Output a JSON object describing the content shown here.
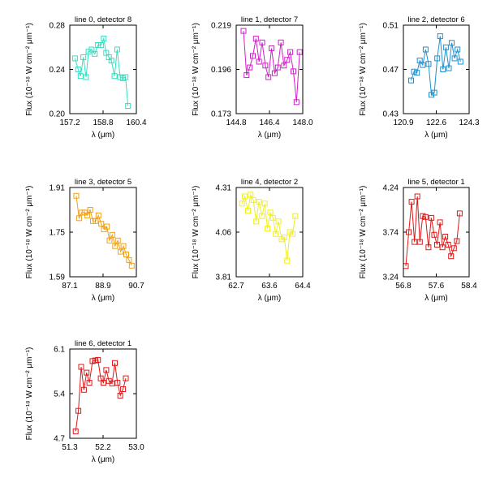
{
  "figure": {
    "background": "#ffffff",
    "marker": "open-square",
    "line_width": 1
  },
  "chart_data": [
    {
      "type": "line",
      "title": "line 0, detector 8",
      "xlabel": "λ (μm)",
      "ylabel": "Flux (10⁻¹⁸ W cm⁻² μm⁻¹)",
      "xlim": [
        157.2,
        160.4
      ],
      "ylim": [
        0.2,
        0.28
      ],
      "xticks": [
        "157.2",
        "158.8",
        "160.4"
      ],
      "yticks": [
        "0.20",
        "0.24",
        "0.28"
      ],
      "color": "#33e0c0",
      "series": [
        {
          "x": [
            157.45,
            157.6,
            157.72,
            157.85,
            157.98,
            158.1,
            158.25,
            158.4,
            158.55,
            158.7,
            158.83,
            158.95,
            159.08,
            159.2,
            159.35,
            159.48,
            159.62,
            159.75,
            159.88,
            160.0
          ],
          "y": [
            0.25,
            0.24,
            0.234,
            0.251,
            0.233,
            0.256,
            0.258,
            0.254,
            0.262,
            0.262,
            0.268,
            0.255,
            0.251,
            0.248,
            0.234,
            0.258,
            0.233,
            0.232,
            0.233,
            0.207
          ]
        }
      ]
    },
    {
      "type": "line",
      "title": "line 1, detector 7",
      "xlabel": "λ (μm)",
      "ylabel": "Flux (10⁻¹⁸ W cm⁻² μm⁻¹)",
      "xlim": [
        144.8,
        148.0
      ],
      "ylim": [
        0.173,
        0.219
      ],
      "xticks": [
        "144.8",
        "146.4",
        "148.0"
      ],
      "yticks": [
        "0.173",
        "0.196",
        "0.219"
      ],
      "color": "#d01ec8",
      "series": [
        {
          "x": [
            145.15,
            145.3,
            145.45,
            145.6,
            145.75,
            145.9,
            146.05,
            146.2,
            146.35,
            146.5,
            146.65,
            146.8,
            146.95,
            147.1,
            147.25,
            147.4,
            147.55,
            147.7,
            147.85
          ],
          "y": [
            0.216,
            0.193,
            0.197,
            0.203,
            0.212,
            0.2,
            0.21,
            0.198,
            0.192,
            0.207,
            0.194,
            0.197,
            0.21,
            0.198,
            0.201,
            0.205,
            0.195,
            0.179,
            0.205
          ]
        }
      ]
    },
    {
      "type": "line",
      "title": "line 2, detector 6",
      "xlabel": "λ (μm)",
      "ylabel": "Flux (10⁻¹⁸ W cm⁻² μm⁻¹)",
      "xlim": [
        120.9,
        124.3
      ],
      "ylim": [
        0.43,
        0.51
      ],
      "xticks": [
        "120.9",
        "122.6",
        "124.3"
      ],
      "yticks": [
        "0.43",
        "0.47",
        "0.51"
      ],
      "color": "#1e90d0",
      "series": [
        {
          "x": [
            121.3,
            121.45,
            121.6,
            121.75,
            121.9,
            122.05,
            122.2,
            122.35,
            122.5,
            122.65,
            122.8,
            122.95,
            123.1,
            123.25,
            123.4,
            123.55,
            123.7,
            123.85
          ],
          "y": [
            0.46,
            0.468,
            0.467,
            0.478,
            0.474,
            0.488,
            0.475,
            0.447,
            0.449,
            0.48,
            0.5,
            0.47,
            0.49,
            0.471,
            0.494,
            0.48,
            0.488,
            0.477
          ]
        }
      ]
    },
    {
      "type": "line",
      "title": "line 3, detector 5",
      "xlabel": "λ (μm)",
      "ylabel": "Flux (10⁻¹⁸ W cm⁻² μm⁻¹)",
      "xlim": [
        87.1,
        90.7
      ],
      "ylim": [
        1.59,
        1.91
      ],
      "xticks": [
        "87.1",
        "88.9",
        "90.7"
      ],
      "yticks": [
        "1.59",
        "1.75",
        "1.91"
      ],
      "color": "#f0a018",
      "series": [
        {
          "x": [
            87.45,
            87.6,
            87.75,
            87.9,
            88.05,
            88.2,
            88.35,
            88.5,
            88.65,
            88.8,
            88.95,
            89.1,
            89.25,
            89.4,
            89.55,
            89.7,
            89.85,
            90.0,
            90.15,
            90.3,
            90.45
          ],
          "y": [
            1.88,
            1.8,
            1.82,
            1.82,
            1.81,
            1.83,
            1.79,
            1.79,
            1.81,
            1.78,
            1.76,
            1.77,
            1.72,
            1.74,
            1.7,
            1.72,
            1.68,
            1.7,
            1.67,
            1.65,
            1.63
          ]
        }
      ]
    },
    {
      "type": "line",
      "title": "line 4, detector 2",
      "xlabel": "λ (μm)",
      "ylabel": "Flux (10⁻¹⁸ W cm⁻² μm⁻¹)",
      "xlim": [
        62.7,
        64.4
      ],
      "ylim": [
        3.81,
        4.31
      ],
      "xticks": [
        "62.7",
        "63.6",
        "64.4"
      ],
      "yticks": [
        "3.81",
        "4.06",
        "4.31"
      ],
      "color": "#f0f020",
      "series": [
        {
          "x": [
            62.85,
            62.92,
            63.0,
            63.07,
            63.14,
            63.21,
            63.28,
            63.36,
            63.43,
            63.5,
            63.57,
            63.64,
            63.71,
            63.78,
            63.86,
            63.93,
            64.0,
            64.07,
            64.14,
            64.21
          ],
          "y": [
            4.22,
            4.26,
            4.18,
            4.27,
            4.24,
            4.12,
            4.23,
            4.15,
            4.22,
            4.08,
            4.17,
            4.14,
            4.05,
            4.12,
            4.02,
            4.03,
            3.9,
            4.06,
            4.05,
            4.15
          ]
        }
      ]
    },
    {
      "type": "line",
      "title": "line 5, detector 1",
      "xlabel": "λ (μm)",
      "ylabel": "Flux (10⁻¹⁸ W cm⁻² μm⁻¹)",
      "xlim": [
        56.8,
        58.4
      ],
      "ylim": [
        3.24,
        4.24
      ],
      "xticks": [
        "56.8",
        "57.6",
        "58.4"
      ],
      "yticks": [
        "3.24",
        "3.74",
        "4.24"
      ],
      "color": "#e01818",
      "series": [
        {
          "x": [
            56.86,
            56.93,
            57.0,
            57.07,
            57.14,
            57.2,
            57.27,
            57.34,
            57.41,
            57.48,
            57.55,
            57.62,
            57.69,
            57.75,
            57.82,
            57.89,
            57.96,
            58.03,
            58.1,
            58.17
          ],
          "y": [
            3.36,
            3.74,
            4.08,
            3.63,
            4.14,
            3.63,
            3.92,
            3.91,
            3.57,
            3.9,
            3.71,
            3.6,
            3.85,
            3.57,
            3.69,
            3.6,
            3.47,
            3.56,
            3.64,
            3.95
          ]
        }
      ]
    },
    {
      "type": "line",
      "title": "line 6, detector 1",
      "xlabel": "λ (μm)",
      "ylabel": "Flux (10⁻¹⁸ W cm⁻² μm⁻¹)",
      "xlim": [
        51.3,
        53.0
      ],
      "ylim": [
        4.7,
        6.1
      ],
      "xticks": [
        "51.3",
        "52.2",
        "53.0"
      ],
      "yticks": [
        "4.7",
        "5.4",
        "6.1"
      ],
      "color": "#e01818",
      "series": [
        {
          "x": [
            51.45,
            51.52,
            51.59,
            51.66,
            51.73,
            51.8,
            51.88,
            51.95,
            52.02,
            52.09,
            52.16,
            52.23,
            52.3,
            52.38,
            52.45,
            52.52,
            52.59,
            52.66,
            52.73
          ],
          "y": [
            4.81,
            5.13,
            5.82,
            5.46,
            5.73,
            5.57,
            5.91,
            5.92,
            5.93,
            5.64,
            5.57,
            5.77,
            5.6,
            5.56,
            5.88,
            5.57,
            5.37,
            5.47,
            5.64
          ]
        }
      ]
    }
  ]
}
